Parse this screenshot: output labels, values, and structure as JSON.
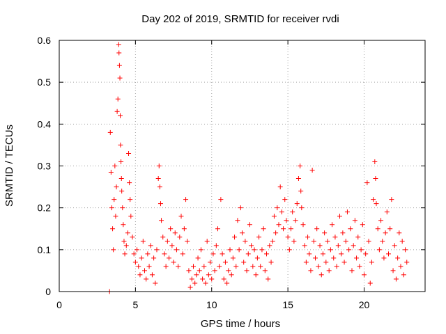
{
  "chart_data": {
    "type": "scatter",
    "title": "Day 202 of 2019, SRMTID for receiver rvdi",
    "xlabel": "GPS time / hours",
    "ylabel": "SRMTID / TECUs",
    "xlim": [
      0,
      24
    ],
    "ylim": [
      0,
      0.6
    ],
    "x_ticks": [
      0,
      5,
      10,
      15,
      20
    ],
    "y_ticks": [
      0,
      0.1,
      0.2,
      0.3,
      0.4,
      0.5,
      0.6
    ],
    "x_tick_labels": [
      "0",
      "5",
      "10",
      "15",
      "20"
    ],
    "y_tick_labels": [
      "0",
      "0.1",
      "0.2",
      "0.3",
      "0.4",
      "0.5",
      "0.6"
    ],
    "grid": true,
    "marker": "+",
    "color": "#ff0000",
    "series": [
      {
        "name": "SRMTID",
        "points": [
          [
            3.3,
            0.0
          ],
          [
            3.35,
            0.38
          ],
          [
            3.4,
            0.285
          ],
          [
            3.45,
            0.2
          ],
          [
            3.5,
            0.15
          ],
          [
            3.55,
            0.1
          ],
          [
            3.6,
            0.22
          ],
          [
            3.65,
            0.3
          ],
          [
            3.7,
            0.18
          ],
          [
            3.75,
            0.25
          ],
          [
            3.8,
            0.43
          ],
          [
            3.85,
            0.46
          ],
          [
            3.9,
            0.59
          ],
          [
            3.92,
            0.57
          ],
          [
            3.95,
            0.54
          ],
          [
            3.98,
            0.51
          ],
          [
            4.0,
            0.42
          ],
          [
            4.02,
            0.35
          ],
          [
            4.05,
            0.31
          ],
          [
            4.08,
            0.27
          ],
          [
            4.1,
            0.24
          ],
          [
            4.15,
            0.2
          ],
          [
            4.2,
            0.16
          ],
          [
            4.25,
            0.12
          ],
          [
            4.3,
            0.09
          ],
          [
            4.4,
            0.11
          ],
          [
            4.5,
            0.14
          ],
          [
            4.55,
            0.33
          ],
          [
            4.6,
            0.26
          ],
          [
            4.65,
            0.22
          ],
          [
            4.7,
            0.18
          ],
          [
            4.8,
            0.13
          ],
          [
            4.9,
            0.09
          ],
          [
            5.0,
            0.07
          ],
          [
            5.1,
            0.1
          ],
          [
            5.2,
            0.06
          ],
          [
            5.3,
            0.04
          ],
          [
            5.4,
            0.08
          ],
          [
            5.5,
            0.12
          ],
          [
            5.6,
            0.05
          ],
          [
            5.7,
            0.03
          ],
          [
            5.8,
            0.09
          ],
          [
            5.9,
            0.06
          ],
          [
            6.0,
            0.11
          ],
          [
            6.1,
            0.04
          ],
          [
            6.2,
            0.08
          ],
          [
            6.3,
            0.02
          ],
          [
            6.4,
            0.1
          ],
          [
            6.5,
            0.27
          ],
          [
            6.55,
            0.3
          ],
          [
            6.6,
            0.25
          ],
          [
            6.65,
            0.21
          ],
          [
            6.7,
            0.17
          ],
          [
            6.8,
            0.13
          ],
          [
            6.9,
            0.09
          ],
          [
            7.0,
            0.06
          ],
          [
            7.1,
            0.12
          ],
          [
            7.2,
            0.08
          ],
          [
            7.3,
            0.15
          ],
          [
            7.4,
            0.11
          ],
          [
            7.5,
            0.07
          ],
          [
            7.6,
            0.14
          ],
          [
            7.7,
            0.1
          ],
          [
            7.8,
            0.06
          ],
          [
            7.9,
            0.13
          ],
          [
            8.0,
            0.18
          ],
          [
            8.1,
            0.09
          ],
          [
            8.2,
            0.15
          ],
          [
            8.3,
            0.22
          ],
          [
            8.4,
            0.12
          ],
          [
            8.5,
            0.05
          ],
          [
            8.6,
            0.01
          ],
          [
            8.7,
            0.03
          ],
          [
            8.8,
            0.06
          ],
          [
            8.9,
            0.02
          ],
          [
            9.0,
            0.04
          ],
          [
            9.1,
            0.08
          ],
          [
            9.2,
            0.05
          ],
          [
            9.3,
            0.1
          ],
          [
            9.4,
            0.03
          ],
          [
            9.5,
            0.06
          ],
          [
            9.6,
            0.02
          ],
          [
            9.7,
            0.12
          ],
          [
            9.8,
            0.04
          ],
          [
            9.9,
            0.07
          ],
          [
            10.0,
            0.03
          ],
          [
            10.1,
            0.09
          ],
          [
            10.2,
            0.05
          ],
          [
            10.3,
            0.11
          ],
          [
            10.4,
            0.15
          ],
          [
            10.5,
            0.06
          ],
          [
            10.6,
            0.22
          ],
          [
            10.7,
            0.09
          ],
          [
            10.8,
            0.03
          ],
          [
            10.9,
            0.07
          ],
          [
            11.0,
            0.02
          ],
          [
            11.1,
            0.05
          ],
          [
            11.2,
            0.1
          ],
          [
            11.3,
            0.04
          ],
          [
            11.4,
            0.08
          ],
          [
            11.5,
            0.13
          ],
          [
            11.6,
            0.06
          ],
          [
            11.7,
            0.17
          ],
          [
            11.8,
            0.1
          ],
          [
            11.9,
            0.2
          ],
          [
            12.0,
            0.14
          ],
          [
            12.1,
            0.07
          ],
          [
            12.2,
            0.12
          ],
          [
            12.3,
            0.05
          ],
          [
            12.4,
            0.09
          ],
          [
            12.5,
            0.16
          ],
          [
            12.6,
            0.11
          ],
          [
            12.7,
            0.06
          ],
          [
            12.8,
            0.1
          ],
          [
            12.9,
            0.04
          ],
          [
            13.0,
            0.08
          ],
          [
            13.1,
            0.13
          ],
          [
            13.2,
            0.06
          ],
          [
            13.3,
            0.1
          ],
          [
            13.4,
            0.15
          ],
          [
            13.5,
            0.05
          ],
          [
            13.6,
            0.09
          ],
          [
            13.7,
            0.03
          ],
          [
            13.8,
            0.11
          ],
          [
            13.9,
            0.07
          ],
          [
            14.0,
            0.12
          ],
          [
            14.1,
            0.18
          ],
          [
            14.2,
            0.14
          ],
          [
            14.3,
            0.2
          ],
          [
            14.4,
            0.16
          ],
          [
            14.5,
            0.25
          ],
          [
            14.6,
            0.19
          ],
          [
            14.7,
            0.15
          ],
          [
            14.8,
            0.22
          ],
          [
            14.9,
            0.17
          ],
          [
            15.0,
            0.13
          ],
          [
            15.1,
            0.1
          ],
          [
            15.2,
            0.15
          ],
          [
            15.3,
            0.19
          ],
          [
            15.4,
            0.12
          ],
          [
            15.5,
            0.17
          ],
          [
            15.6,
            0.21
          ],
          [
            15.7,
            0.27
          ],
          [
            15.8,
            0.3
          ],
          [
            15.85,
            0.24
          ],
          [
            15.9,
            0.2
          ],
          [
            16.0,
            0.16
          ],
          [
            16.1,
            0.11
          ],
          [
            16.2,
            0.07
          ],
          [
            16.3,
            0.13
          ],
          [
            16.4,
            0.09
          ],
          [
            16.5,
            0.05
          ],
          [
            16.6,
            0.29
          ],
          [
            16.7,
            0.12
          ],
          [
            16.8,
            0.08
          ],
          [
            16.9,
            0.15
          ],
          [
            17.0,
            0.06
          ],
          [
            17.1,
            0.11
          ],
          [
            17.2,
            0.04
          ],
          [
            17.3,
            0.09
          ],
          [
            17.4,
            0.14
          ],
          [
            17.5,
            0.07
          ],
          [
            17.6,
            0.12
          ],
          [
            17.7,
            0.05
          ],
          [
            17.8,
            0.1
          ],
          [
            17.9,
            0.16
          ],
          [
            18.0,
            0.08
          ],
          [
            18.1,
            0.13
          ],
          [
            18.2,
            0.06
          ],
          [
            18.3,
            0.11
          ],
          [
            18.4,
            0.18
          ],
          [
            18.5,
            0.09
          ],
          [
            18.6,
            0.14
          ],
          [
            18.7,
            0.07
          ],
          [
            18.8,
            0.12
          ],
          [
            18.9,
            0.19
          ],
          [
            19.0,
            0.1
          ],
          [
            19.1,
            0.15
          ],
          [
            19.2,
            0.05
          ],
          [
            19.3,
            0.11
          ],
          [
            19.4,
            0.17
          ],
          [
            19.5,
            0.08
          ],
          [
            19.6,
            0.13
          ],
          [
            19.7,
            0.06
          ],
          [
            19.8,
            0.1
          ],
          [
            19.9,
            0.16
          ],
          [
            20.0,
            0.04
          ],
          [
            20.1,
            0.09
          ],
          [
            20.2,
            0.26
          ],
          [
            20.3,
            0.12
          ],
          [
            20.4,
            0.02
          ],
          [
            20.5,
            0.07
          ],
          [
            20.6,
            0.22
          ],
          [
            20.7,
            0.31
          ],
          [
            20.75,
            0.27
          ],
          [
            20.8,
            0.21
          ],
          [
            20.9,
            0.15
          ],
          [
            21.0,
            0.1
          ],
          [
            21.1,
            0.17
          ],
          [
            21.2,
            0.12
          ],
          [
            21.3,
            0.08
          ],
          [
            21.4,
            0.14
          ],
          [
            21.5,
            0.19
          ],
          [
            21.6,
            0.09
          ],
          [
            21.7,
            0.15
          ],
          [
            21.8,
            0.22
          ],
          [
            21.9,
            0.05
          ],
          [
            22.0,
            0.11
          ],
          [
            22.1,
            0.03
          ],
          [
            22.2,
            0.08
          ],
          [
            22.3,
            0.14
          ],
          [
            22.4,
            0.06
          ],
          [
            22.5,
            0.12
          ],
          [
            22.6,
            0.04
          ],
          [
            22.7,
            0.1
          ],
          [
            22.8,
            0.07
          ]
        ]
      }
    ]
  }
}
